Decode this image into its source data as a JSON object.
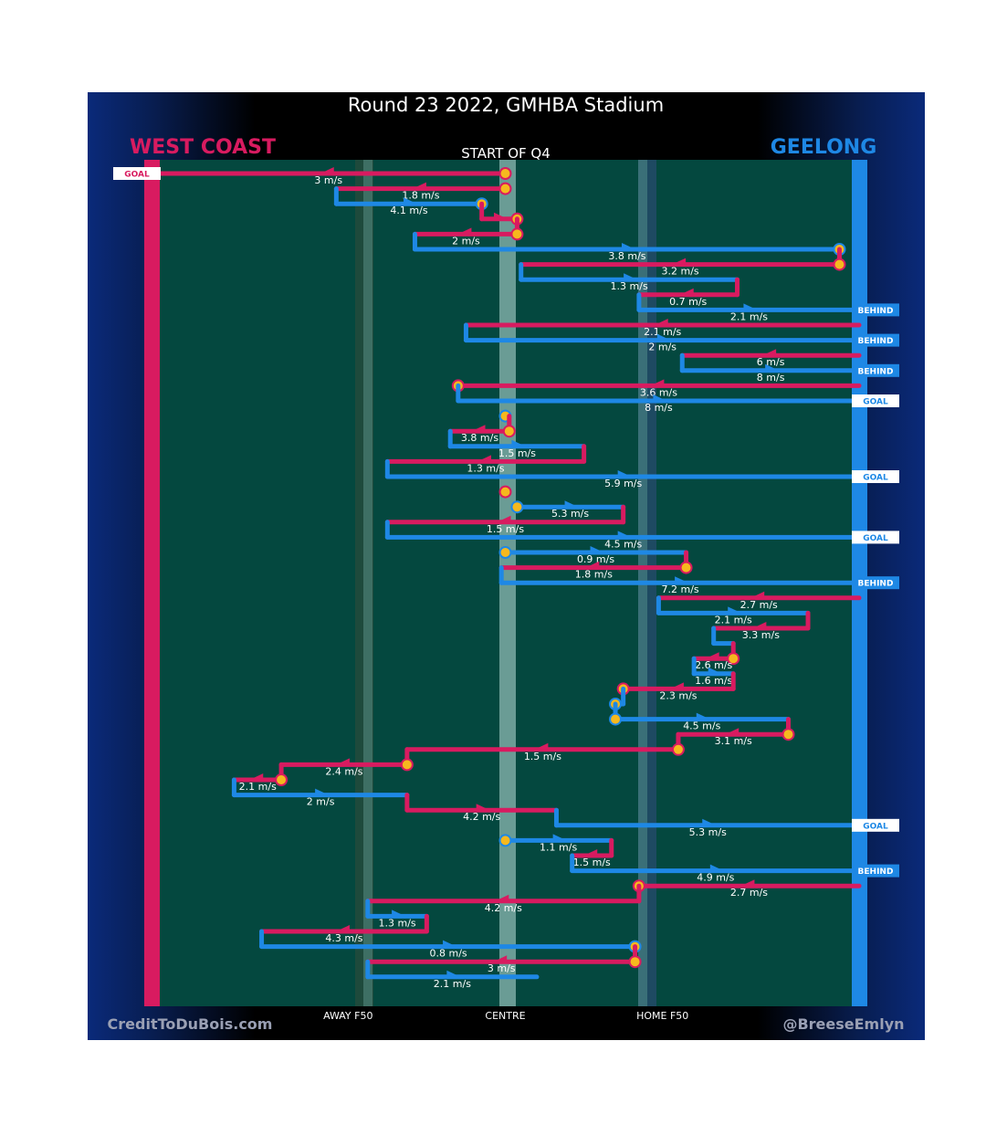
{
  "title": "Round 23 2022, GMHBA Stadium",
  "subtitle": "START OF Q4",
  "teams": {
    "left": {
      "name": "WEST COAST",
      "color": "#d81b60"
    },
    "right": {
      "name": "GEELONG",
      "color": "#1e88e5"
    }
  },
  "footer": {
    "left": "CreditToDuBois.com",
    "right": "@BreeseEmlyn"
  },
  "colors": {
    "west": "#d81b60",
    "geelong": "#1e88e5",
    "field": "#04483f",
    "marker": "#f6b81e",
    "frame": "#000000"
  },
  "chart_data": {
    "type": "line",
    "description_units": "x = metres from West Coast goal line (0) to Geelong goal line (180); each row is one possession chain",
    "x_axis": {
      "ticks": [
        {
          "x": 50,
          "label": "AWAY F50"
        },
        {
          "x": 90,
          "label": "CENTRE"
        },
        {
          "x": 130,
          "label": "HOME F50"
        }
      ],
      "range": [
        0,
        180
      ]
    },
    "chains": [
      {
        "team": "west",
        "from": 90,
        "to": 0,
        "speed": "3 m/s",
        "start_marker": true,
        "end_tag": "GOAL"
      },
      {
        "team": "west",
        "from": 90,
        "to": 47,
        "speed": "1.8 m/s",
        "start_marker": true,
        "turnover_to": 84
      },
      {
        "team": "geelong",
        "from": 47,
        "to": 84,
        "speed": "4.1 m/s",
        "end_marker": true
      },
      {
        "team": "west",
        "from": 84,
        "to": 93,
        "speed": "",
        "end_marker": true
      },
      {
        "team": "west",
        "from": 93,
        "to": 67,
        "speed": "2 m/s",
        "start_marker": true,
        "turnover_to": 67
      },
      {
        "team": "geelong",
        "from": 67,
        "to": 175,
        "speed": "3.8 m/s",
        "end_marker": true
      },
      {
        "team": "west",
        "from": 175,
        "to": 94,
        "speed": "3.2 m/s",
        "start_marker": true,
        "turnover_to": 94
      },
      {
        "team": "geelong",
        "from": 94,
        "to": 149,
        "speed": "1.3 m/s"
      },
      {
        "team": "west",
        "from": 149,
        "to": 124,
        "speed": "0.7 m/s"
      },
      {
        "team": "geelong",
        "from": 124,
        "to": 180,
        "speed": "2.1 m/s",
        "end_tag": "BEHIND"
      },
      {
        "team": "west",
        "from": 180,
        "to": 80,
        "speed": "2.1 m/s"
      },
      {
        "team": "geelong",
        "from": 80,
        "to": 180,
        "speed": "2 m/s",
        "end_tag": "BEHIND"
      },
      {
        "team": "west",
        "from": 180,
        "to": 135,
        "speed": "6 m/s"
      },
      {
        "team": "geelong",
        "from": 135,
        "to": 180,
        "speed": "8 m/s",
        "end_tag": "BEHIND"
      },
      {
        "team": "west",
        "from": 180,
        "to": 78,
        "speed": "3.6 m/s",
        "end_marker": true
      },
      {
        "team": "geelong",
        "from": 78,
        "to": 180,
        "speed": "8 m/s",
        "end_tag": "GOAL"
      },
      {
        "team": "geelong",
        "from": 90,
        "to": 90,
        "speed": "",
        "start_marker": true
      },
      {
        "team": "west",
        "from": 91,
        "to": 76,
        "speed": "3.8 m/s",
        "start_marker": true
      },
      {
        "team": "geelong",
        "from": 76,
        "to": 110,
        "speed": "1.5 m/s"
      },
      {
        "team": "west",
        "from": 110,
        "to": 60,
        "speed": "1.3 m/s"
      },
      {
        "team": "geelong",
        "from": 60,
        "to": 180,
        "speed": "5.9 m/s",
        "end_tag": "GOAL"
      },
      {
        "team": "west",
        "from": 90,
        "to": 90,
        "speed": "",
        "start_marker": true
      },
      {
        "team": "geelong",
        "from": 93,
        "to": 120,
        "speed": "5.3 m/s",
        "start_marker": true
      },
      {
        "team": "west",
        "from": 120,
        "to": 60,
        "speed": "1.5 m/s"
      },
      {
        "team": "geelong",
        "from": 60,
        "to": 180,
        "speed": "4.5 m/s",
        "end_tag": "GOAL"
      },
      {
        "team": "geelong",
        "from": 90,
        "to": 136,
        "speed": "0.9 m/s",
        "start_marker": true
      },
      {
        "team": "west",
        "from": 136,
        "to": 89,
        "speed": "1.8 m/s",
        "start_marker": true
      },
      {
        "team": "geelong",
        "from": 89,
        "to": 180,
        "speed": "7.2 m/s",
        "end_tag": "BEHIND"
      },
      {
        "team": "west",
        "from": 180,
        "to": 129,
        "speed": "2.7 m/s"
      },
      {
        "team": "geelong",
        "from": 129,
        "to": 167,
        "speed": "2.1 m/s"
      },
      {
        "team": "west",
        "from": 167,
        "to": 143,
        "speed": "3.3 m/s"
      },
      {
        "team": "geelong",
        "from": 143,
        "to": 148,
        "speed": ""
      },
      {
        "team": "west",
        "from": 148,
        "to": 138,
        "speed": "2.6 m/s",
        "start_marker": true
      },
      {
        "team": "geelong",
        "from": 138,
        "to": 148,
        "speed": "1.6 m/s"
      },
      {
        "team": "west",
        "from": 148,
        "to": 120,
        "speed": "2.3 m/s",
        "end_marker": true
      },
      {
        "team": "geelong",
        "from": 120,
        "to": 118,
        "speed": "",
        "end_marker": true
      },
      {
        "team": "geelong",
        "from": 118,
        "to": 162,
        "speed": "4.5 m/s",
        "start_marker": true
      },
      {
        "team": "west",
        "from": 162,
        "to": 134,
        "speed": "3.1 m/s",
        "start_marker": true
      },
      {
        "team": "west",
        "from": 134,
        "to": 65,
        "speed": "1.5 m/s",
        "start_marker": true
      },
      {
        "team": "west",
        "from": 65,
        "to": 33,
        "speed": "2.4 m/s",
        "start_marker": true
      },
      {
        "team": "west",
        "from": 33,
        "to": 21,
        "speed": "2.1 m/s",
        "start_marker": true
      },
      {
        "team": "geelong",
        "from": 21,
        "to": 65,
        "speed": "2 m/s"
      },
      {
        "team": "west",
        "from": 65,
        "to": 103,
        "speed": "4.2 m/s"
      },
      {
        "team": "geelong",
        "from": 103,
        "to": 180,
        "speed": "5.3 m/s",
        "end_tag": "GOAL"
      },
      {
        "team": "geelong",
        "from": 90,
        "to": 117,
        "speed": "1.1 m/s",
        "start_marker": true
      },
      {
        "team": "west",
        "from": 117,
        "to": 107,
        "speed": "1.5 m/s"
      },
      {
        "team": "geelong",
        "from": 107,
        "to": 180,
        "speed": "4.9 m/s",
        "end_tag": "BEHIND"
      },
      {
        "team": "west",
        "from": 180,
        "to": 124,
        "speed": "2.7 m/s",
        "end_marker": true
      },
      {
        "team": "west",
        "from": 124,
        "to": 55,
        "speed": "4.2 m/s"
      },
      {
        "team": "geelong",
        "from": 55,
        "to": 70,
        "speed": "1.3 m/s"
      },
      {
        "team": "west",
        "from": 70,
        "to": 28,
        "speed": "4.3 m/s"
      },
      {
        "team": "geelong",
        "from": 28,
        "to": 123,
        "speed": "0.8 m/s",
        "end_marker": true
      },
      {
        "team": "west",
        "from": 123,
        "to": 55,
        "speed": "3 m/s",
        "start_marker": true
      },
      {
        "team": "geelong",
        "from": 55,
        "to": 98,
        "speed": "2.1 m/s"
      }
    ]
  }
}
